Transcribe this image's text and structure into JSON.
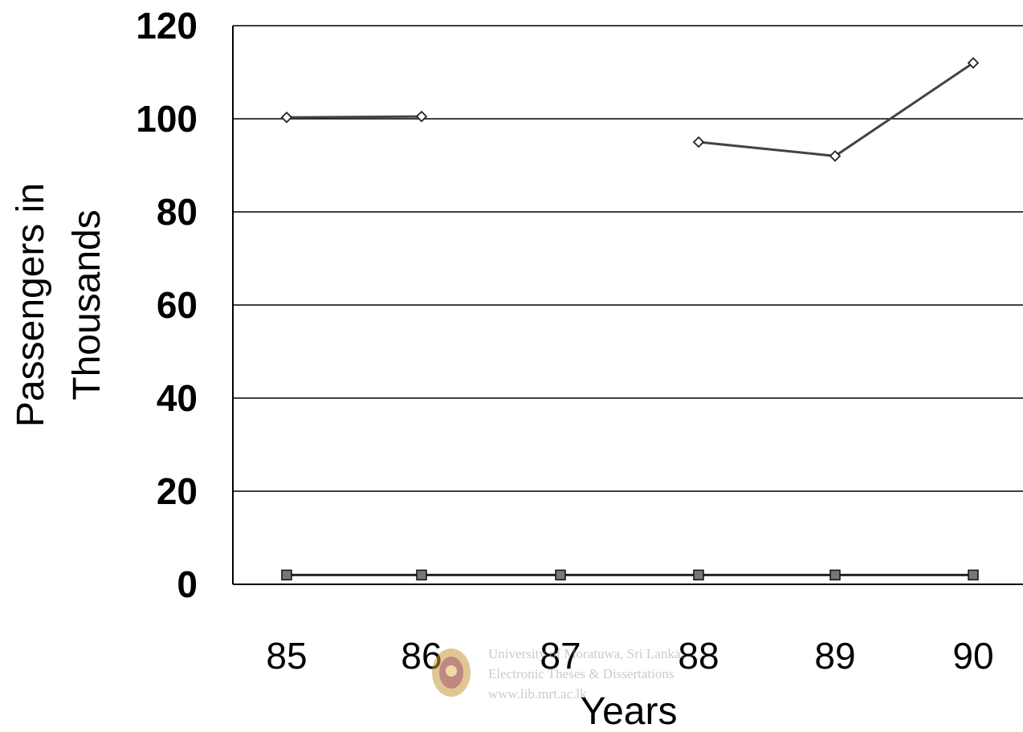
{
  "chart_data": {
    "type": "line",
    "title": "",
    "xlabel": "Years",
    "ylabel_lines": [
      "Passengers  in",
      "Thousands"
    ],
    "categories": [
      "85",
      "86",
      "87",
      "88",
      "89",
      "90"
    ],
    "ylim": [
      0,
      120
    ],
    "yticks": [
      0,
      20,
      40,
      60,
      80,
      100,
      120
    ],
    "grid": true,
    "legend": "none",
    "series": [
      {
        "values": [
          100.3,
          100.5,
          null,
          95,
          92,
          112
        ],
        "marker": "diamond",
        "color": "#444444"
      },
      {
        "values": [
          2,
          2,
          2,
          2,
          2,
          2
        ],
        "marker": "square",
        "color": "#222222"
      }
    ]
  },
  "watermark": {
    "lines": [
      "University of Moratuwa, Sri Lanka.",
      "Electronic Theses & Dissertations",
      "www.lib.mrt.ac.lk"
    ],
    "logo": "university-crest-seal"
  }
}
